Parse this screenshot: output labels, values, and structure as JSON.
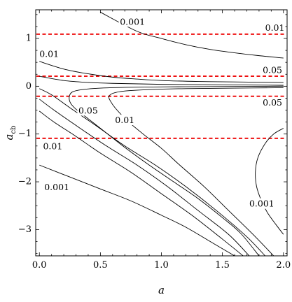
{
  "chart_data": {
    "type": "line",
    "title": "",
    "xlabel": "a",
    "ylabel_main": "a",
    "ylabel_sub": "cb",
    "xlim": [
      -0.03,
      2.03
    ],
    "ylim": [
      -3.55,
      1.6
    ],
    "x_ticks": [
      "0.0",
      "0.5",
      "1.0",
      "1.5",
      "2.0"
    ],
    "x_tick_values": [
      0,
      0.5,
      1,
      1.5,
      2
    ],
    "y_ticks": [
      "1",
      "0",
      "−1",
      "−2",
      "−3"
    ],
    "y_tick_values": [
      1,
      0,
      -1,
      -2,
      -3
    ],
    "ref_color": "#ee1111",
    "ref_lines": [
      {
        "name": "",
        "y": 1.09
      },
      {
        "name": "",
        "y": 0.21
      },
      {
        "name": "",
        "y": -0.21
      },
      {
        "name": "",
        "y": -1.09
      }
    ],
    "series": [
      {
        "name": "",
        "points": [
          [
            0.5,
            1.55
          ],
          [
            0.8,
            1.15
          ],
          [
            1.0,
            1.0
          ],
          [
            1.2,
            0.87
          ],
          [
            1.4,
            0.77
          ],
          [
            1.6,
            0.7
          ],
          [
            1.8,
            0.64
          ],
          [
            2.0,
            0.59
          ]
        ]
      },
      {
        "name": "",
        "points": [
          [
            0.0,
            0.52
          ],
          [
            0.2,
            0.36
          ],
          [
            0.4,
            0.26
          ],
          [
            0.6,
            0.19
          ],
          [
            0.8,
            0.15
          ],
          [
            1.0,
            0.12
          ],
          [
            1.3,
            0.1
          ],
          [
            1.6,
            0.09
          ],
          [
            2.0,
            0.08
          ]
        ]
      },
      {
        "name": "",
        "points": [
          [
            0.0,
            0.21
          ],
          [
            0.2,
            0.12
          ],
          [
            0.4,
            0.08
          ],
          [
            0.6,
            0.06
          ],
          [
            1.0,
            0.04
          ],
          [
            1.5,
            0.03
          ],
          [
            2.0,
            0.02
          ]
        ]
      },
      {
        "name": "",
        "points": [
          [
            2.0,
            0.0
          ],
          [
            1.6,
            -0.005
          ],
          [
            1.2,
            -0.01
          ],
          [
            0.8,
            -0.02
          ],
          [
            0.5,
            -0.04
          ],
          [
            0.35,
            -0.07
          ],
          [
            0.27,
            -0.12
          ],
          [
            0.245,
            -0.22
          ],
          [
            0.255,
            -0.35
          ],
          [
            0.3,
            -0.48
          ],
          [
            0.4,
            -0.68
          ],
          [
            0.55,
            -0.98
          ],
          [
            0.7,
            -1.28
          ],
          [
            0.9,
            -1.65
          ],
          [
            1.1,
            -2.0
          ],
          [
            1.3,
            -2.35
          ],
          [
            1.5,
            -2.75
          ],
          [
            1.65,
            -3.08
          ],
          [
            1.8,
            -3.55
          ]
        ]
      },
      {
        "name": "",
        "points": [
          [
            2.0,
            -0.03
          ],
          [
            1.6,
            -0.04
          ],
          [
            1.2,
            -0.05
          ],
          [
            0.9,
            -0.07
          ],
          [
            0.7,
            -0.1
          ],
          [
            0.6,
            -0.15
          ],
          [
            0.57,
            -0.22
          ],
          [
            0.58,
            -0.3
          ],
          [
            0.62,
            -0.45
          ],
          [
            0.72,
            -0.72
          ],
          [
            0.85,
            -1.0
          ],
          [
            1.0,
            -1.3
          ],
          [
            1.15,
            -1.65
          ],
          [
            1.35,
            -2.1
          ],
          [
            1.55,
            -2.6
          ],
          [
            1.75,
            -3.1
          ],
          [
            1.92,
            -3.55
          ]
        ]
      },
      {
        "name": "",
        "points": [
          [
            0.0,
            -0.05
          ],
          [
            0.1,
            -0.18
          ],
          [
            0.25,
            -0.45
          ],
          [
            0.45,
            -0.8
          ],
          [
            0.7,
            -1.25
          ],
          [
            0.95,
            -1.65
          ],
          [
            1.2,
            -2.1
          ],
          [
            1.45,
            -2.6
          ],
          [
            1.7,
            -3.15
          ],
          [
            1.85,
            -3.55
          ]
        ]
      },
      {
        "name": "",
        "points": [
          [
            0.0,
            -0.27
          ],
          [
            0.12,
            -0.5
          ],
          [
            0.3,
            -0.82
          ],
          [
            0.55,
            -1.25
          ],
          [
            0.8,
            -1.65
          ],
          [
            1.05,
            -2.1
          ],
          [
            1.3,
            -2.6
          ],
          [
            1.55,
            -3.1
          ],
          [
            1.72,
            -3.55
          ]
        ]
      },
      {
        "name": "",
        "points": [
          [
            0.0,
            -0.52
          ],
          [
            0.12,
            -0.75
          ],
          [
            0.3,
            -1.05
          ],
          [
            0.5,
            -1.4
          ],
          [
            0.75,
            -1.8
          ],
          [
            1.0,
            -2.25
          ],
          [
            1.25,
            -2.7
          ],
          [
            1.5,
            -3.2
          ],
          [
            1.67,
            -3.55
          ]
        ]
      },
      {
        "name": "",
        "points": [
          [
            0.0,
            -1.65
          ],
          [
            0.25,
            -1.9
          ],
          [
            0.5,
            -2.15
          ],
          [
            0.75,
            -2.4
          ],
          [
            1.0,
            -2.7
          ],
          [
            1.2,
            -2.95
          ],
          [
            1.4,
            -3.25
          ],
          [
            1.6,
            -3.55
          ]
        ]
      },
      {
        "name": "",
        "points": [
          [
            2.0,
            -0.88
          ],
          [
            1.92,
            -1.0
          ],
          [
            1.85,
            -1.2
          ],
          [
            1.79,
            -1.5
          ],
          [
            1.77,
            -1.8
          ],
          [
            1.78,
            -2.1
          ],
          [
            1.82,
            -2.4
          ],
          [
            1.87,
            -2.65
          ],
          [
            1.94,
            -2.9
          ],
          [
            2.0,
            -3.1
          ]
        ]
      }
    ],
    "annotations": [
      {
        "text": "0.001",
        "x": 0.66,
        "y": 1.34
      },
      {
        "text": "0.01",
        "x": 1.85,
        "y": 1.21
      },
      {
        "text": "0.01",
        "x": 0.0,
        "y": 0.66
      },
      {
        "text": "0.05",
        "x": 1.83,
        "y": 0.33
      },
      {
        "text": "0.05",
        "x": 1.83,
        "y": -0.35
      },
      {
        "text": "0.05",
        "x": 0.32,
        "y": -0.52
      },
      {
        "text": "0.01",
        "x": 0.62,
        "y": -0.72
      },
      {
        "text": "0.01",
        "x": 0.03,
        "y": -1.27
      },
      {
        "text": "0.001",
        "x": 0.04,
        "y": -2.12
      },
      {
        "text": "0.001",
        "x": 1.72,
        "y": -2.47
      }
    ],
    "grid": false,
    "legend": "none"
  }
}
